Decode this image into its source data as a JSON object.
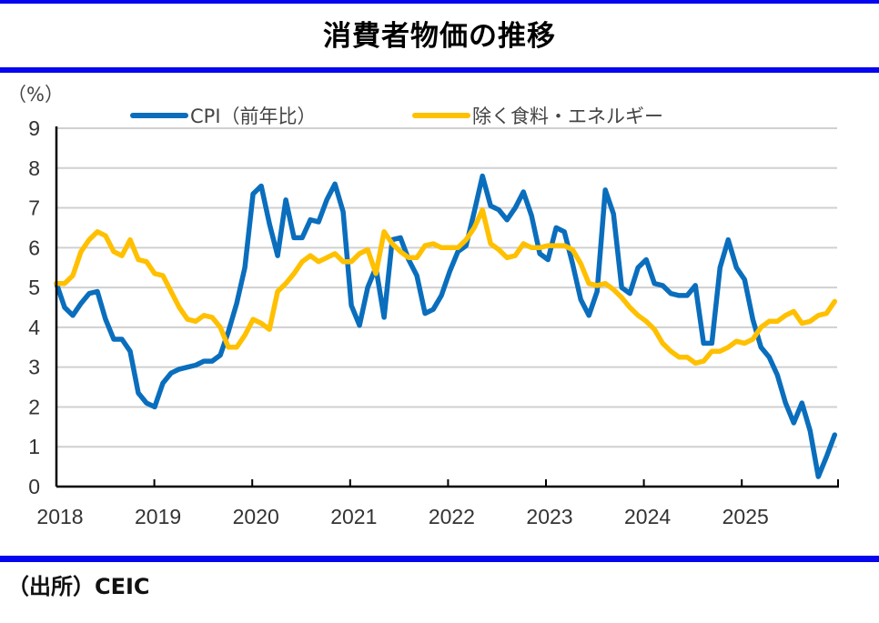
{
  "title": "消費者物価の推移",
  "source": "（出所）CEIC",
  "colors": {
    "rule": "#0505f0",
    "cpi": "#0a6ebd",
    "core": "#ffc000",
    "grid": "#d0d0d0"
  },
  "chart_data": {
    "type": "line",
    "title": "消費者物価の推移",
    "ylabel": "（%）",
    "xlabel": "",
    "ylim": [
      0,
      9
    ],
    "yticks": [
      "0",
      "1",
      "2",
      "3",
      "4",
      "5",
      "6",
      "7",
      "8",
      "9"
    ],
    "xticks": [
      "2018",
      "2019",
      "2020",
      "2021",
      "2022",
      "2023",
      "2024",
      "2025"
    ],
    "x_start": "2018-01",
    "frequency": "monthly",
    "grid": true,
    "legend_position": "top",
    "series": [
      {
        "name": "CPI（前年比）",
        "color": "#0a6ebd",
        "values": [
          5.1,
          4.5,
          4.3,
          4.6,
          4.85,
          4.9,
          4.2,
          3.7,
          3.7,
          3.4,
          2.35,
          2.1,
          2.0,
          2.6,
          2.85,
          2.95,
          3.0,
          3.05,
          3.15,
          3.15,
          3.3,
          3.9,
          4.6,
          5.5,
          7.35,
          7.55,
          6.6,
          5.8,
          7.2,
          6.25,
          6.25,
          6.7,
          6.65,
          7.2,
          7.6,
          6.9,
          4.55,
          4.05,
          5.0,
          5.5,
          4.25,
          6.2,
          6.25,
          5.7,
          5.3,
          4.35,
          4.45,
          4.8,
          5.4,
          5.9,
          6.05,
          6.9,
          7.8,
          7.05,
          6.95,
          6.7,
          7.0,
          7.4,
          6.8,
          5.85,
          5.7,
          6.5,
          6.4,
          5.6,
          4.7,
          4.3,
          4.9,
          7.45,
          6.85,
          5.0,
          4.85,
          5.5,
          5.7,
          5.1,
          5.05,
          4.85,
          4.8,
          4.8,
          5.05,
          3.6,
          3.6,
          5.5,
          6.2,
          5.5,
          5.2,
          4.2,
          3.5,
          3.25,
          2.8,
          2.1,
          1.6,
          2.1,
          1.4,
          0.25,
          0.75,
          1.3
        ]
      },
      {
        "name": "除く食料・エネルギー",
        "color": "#ffc000",
        "values": [
          5.1,
          5.1,
          5.3,
          5.9,
          6.2,
          6.4,
          6.3,
          5.9,
          5.8,
          6.2,
          5.7,
          5.65,
          5.35,
          5.3,
          4.9,
          4.5,
          4.2,
          4.15,
          4.3,
          4.25,
          4.0,
          3.5,
          3.5,
          3.8,
          4.2,
          4.1,
          3.95,
          4.9,
          5.1,
          5.35,
          5.65,
          5.8,
          5.65,
          5.75,
          5.85,
          5.65,
          5.65,
          5.85,
          5.95,
          5.35,
          6.4,
          6.1,
          5.9,
          5.75,
          5.75,
          6.05,
          6.1,
          6.0,
          6.0,
          6.0,
          6.2,
          6.5,
          6.95,
          6.1,
          5.95,
          5.75,
          5.8,
          6.1,
          6.0,
          6.0,
          6.05,
          6.05,
          6.05,
          5.95,
          5.6,
          5.1,
          5.05,
          5.1,
          4.95,
          4.75,
          4.5,
          4.3,
          4.15,
          3.95,
          3.6,
          3.4,
          3.25,
          3.25,
          3.1,
          3.15,
          3.4,
          3.4,
          3.5,
          3.65,
          3.6,
          3.7,
          4.0,
          4.15,
          4.15,
          4.3,
          4.4,
          4.1,
          4.15,
          4.3,
          4.35,
          4.65
        ]
      }
    ]
  }
}
